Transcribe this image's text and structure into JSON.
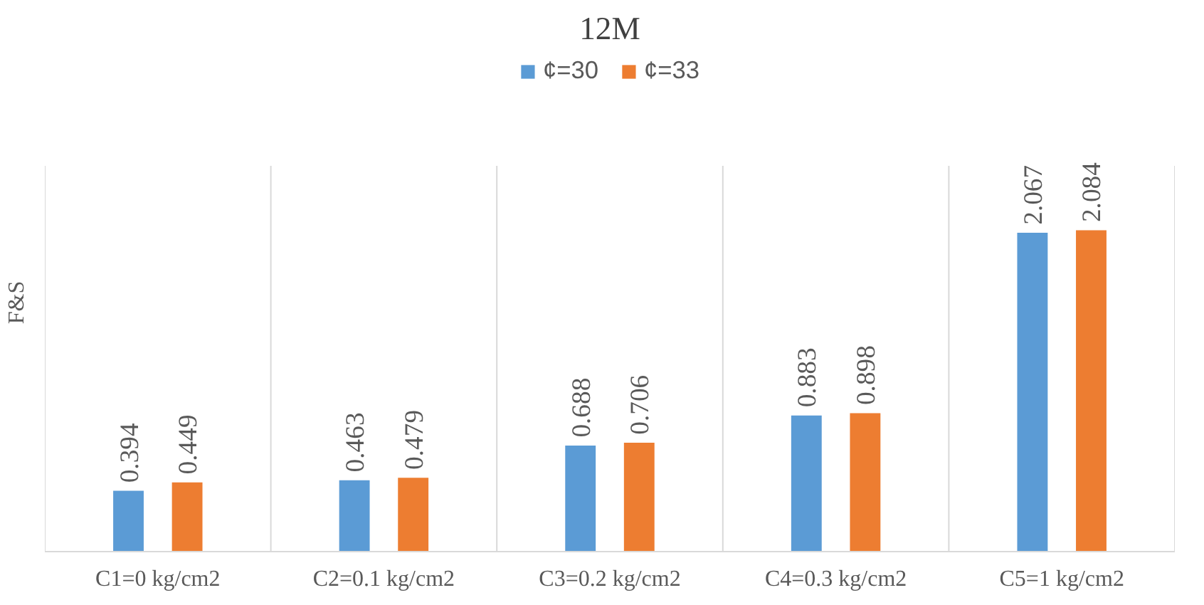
{
  "chart_data": {
    "type": "bar",
    "title": "12M",
    "ylabel": "F&S",
    "categories": [
      "C1=0 kg/cm2",
      "C2=0.1 kg/cm2",
      "C3=0.2 kg/cm2",
      "C4=0.3 kg/cm2",
      "C5=1 kg/cm2"
    ],
    "series": [
      {
        "name": "¢=30",
        "color": "#5b9bd5",
        "values": [
          0.394,
          0.463,
          0.688,
          0.883,
          2.067
        ]
      },
      {
        "name": "¢=33",
        "color": "#ed7d31",
        "values": [
          0.449,
          0.479,
          0.706,
          0.898,
          2.084
        ]
      }
    ],
    "data_labels": true,
    "legend": "top",
    "grid": "x"
  }
}
